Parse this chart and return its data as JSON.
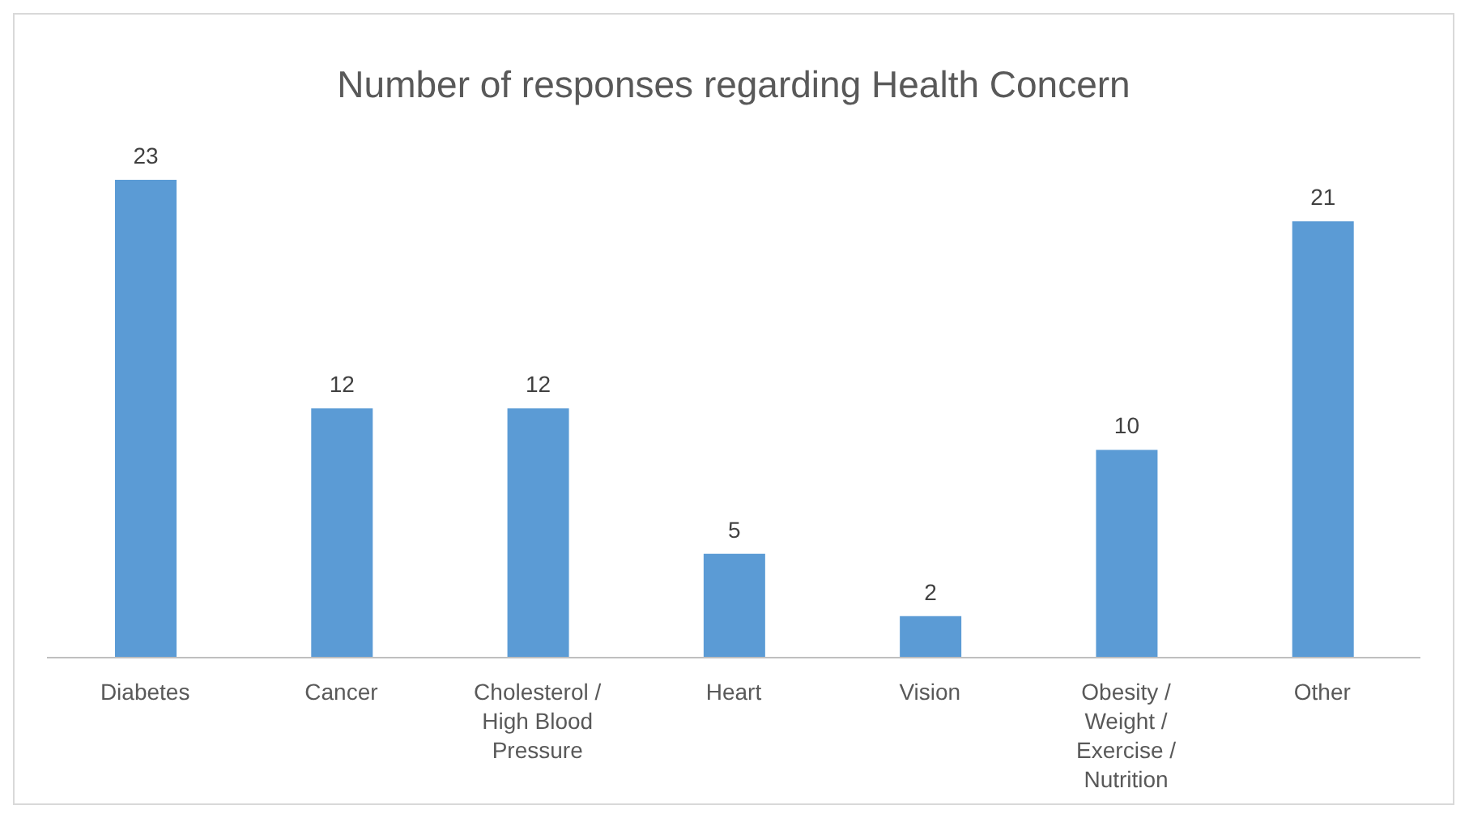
{
  "chart_data": {
    "type": "bar",
    "title": "Number of responses regarding Health Concern",
    "categories": [
      "Diabetes",
      "Cancer",
      "Cholesterol / High Blood Pressure",
      "Heart",
      "Vision",
      "Obesity / Weight / Exercise / Nutrition",
      "Other"
    ],
    "values": [
      23,
      12,
      12,
      5,
      2,
      10,
      21
    ],
    "color": "#5b9bd5",
    "data_labels": true,
    "grid": false,
    "legend": false
  }
}
